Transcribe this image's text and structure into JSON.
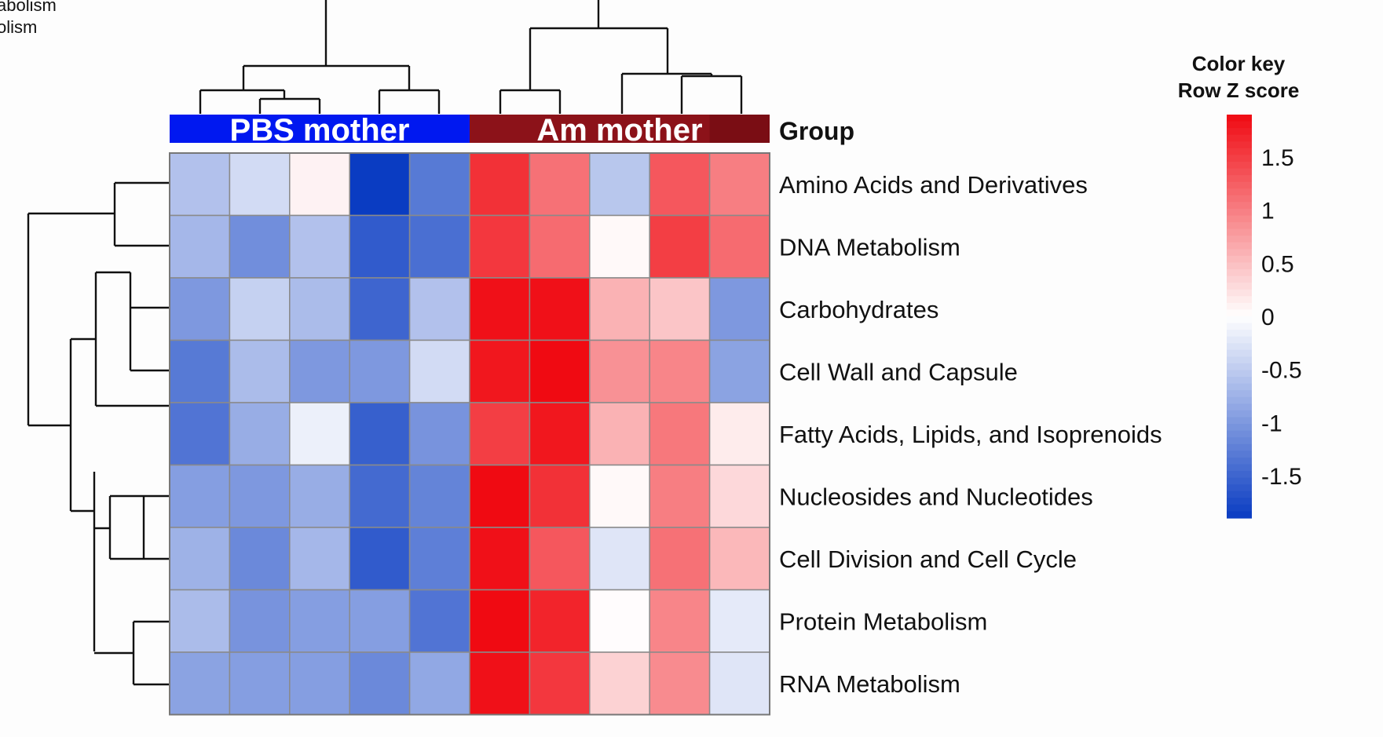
{
  "top_cut_text": [
    "abolism",
    "olism"
  ],
  "bottom_cut_title": "",
  "chart_data": {
    "type": "heatmap",
    "title": "",
    "group_header": "Group",
    "groups": [
      {
        "name": "PBS mother",
        "columns": 5,
        "color": "#0018f0"
      },
      {
        "name": "Am mother",
        "columns": 5,
        "color": "#8c1219"
      }
    ],
    "rows": [
      "Amino Acids and Derivatives",
      "DNA Metabolism",
      "Carbohydrates",
      "Cell Wall and Capsule",
      "Fatty Acids, Lipids, and Isoprenoids",
      "Nucleosides and Nucleotides",
      "Cell Division and Cell Cycle",
      "Protein Metabolism",
      "RNA Metabolism"
    ],
    "values": [
      [
        -0.6,
        -0.35,
        0.1,
        -1.9,
        -1.3,
        1.6,
        1.1,
        -0.55,
        1.3,
        1.0
      ],
      [
        -0.7,
        -1.1,
        -0.6,
        -1.6,
        -1.4,
        1.55,
        1.15,
        0.05,
        1.5,
        1.15
      ],
      [
        -1.0,
        -0.45,
        -0.65,
        -1.5,
        -0.6,
        1.85,
        1.85,
        0.6,
        0.45,
        -1.0
      ],
      [
        -1.3,
        -0.65,
        -1.0,
        -1.0,
        -0.35,
        1.8,
        1.9,
        0.85,
        0.95,
        -0.9
      ],
      [
        -1.35,
        -0.8,
        -0.15,
        -1.55,
        -1.05,
        1.5,
        1.8,
        0.6,
        1.05,
        0.15
      ],
      [
        -0.95,
        -1.0,
        -0.8,
        -1.45,
        -1.2,
        1.9,
        1.6,
        0.05,
        1.0,
        0.3
      ],
      [
        -0.75,
        -1.15,
        -0.7,
        -1.6,
        -1.25,
        1.85,
        1.3,
        -0.25,
        1.1,
        0.55
      ],
      [
        -0.65,
        -1.05,
        -0.95,
        -0.95,
        -1.35,
        1.9,
        1.7,
        0.02,
        0.95,
        -0.2
      ],
      [
        -0.9,
        -0.95,
        -0.95,
        -1.15,
        -0.85,
        1.85,
        1.55,
        0.35,
        0.9,
        -0.25
      ]
    ],
    "color_key": {
      "title_line1": "Color key",
      "title_line2": "Row Z score",
      "ticks": [
        "1.5",
        "1",
        "0.5",
        "0",
        "-0.5",
        "-1",
        "-1.5"
      ],
      "tick_values": [
        1.5,
        1,
        0.5,
        0,
        -0.5,
        -1,
        -1.5
      ],
      "range": [
        -1.9,
        1.9
      ],
      "low_color": "#0a3cc2",
      "mid_color": "#ffffff",
      "high_color": "#f00a12"
    },
    "grid": false
  }
}
